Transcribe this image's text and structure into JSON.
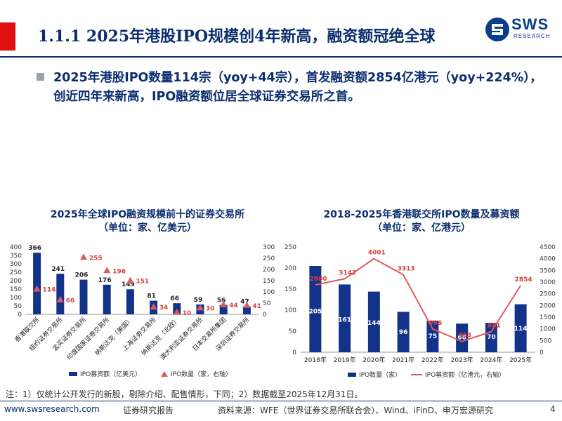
{
  "header": {
    "title": "1.1.1 2025年港股IPO规模创4年新高，融资额冠绝全球",
    "logo_text": "SWS",
    "logo_sub": "RESEARCH",
    "accent_color": "#e01010",
    "brand_color": "#0b2e6e"
  },
  "summary": {
    "text": "2025年港股IPO数量114宗（yoy+44宗），首发融资额2854亿港元（yoy+224%），创近四年来新高，IPO融资额位居全球证券交易所之首。"
  },
  "chart_data": [
    {
      "type": "bar",
      "title_line1": "2025年全球IPO融资规模前十的证券交易所",
      "title_line2": "（单位：家、亿美元）",
      "categories": [
        "香港联交所",
        "纽约证券交易所",
        "孟买证券交易所",
        "印度国家证券交易所",
        "纳斯达克（美国）",
        "上海证券交易所",
        "纳斯达克（北欧）",
        "澳大利亚证券交易所",
        "日本交易所集团",
        "深圳证券交易所"
      ],
      "series": [
        {
          "name": "IPO募资额（亿美元）",
          "values": [
            366,
            241,
            206,
            176,
            149,
            81,
            66,
            59,
            56,
            47
          ],
          "color": "#13338a",
          "axis": "left"
        },
        {
          "name": "IPO数量（家，右轴）",
          "values": [
            114,
            66,
            255,
            196,
            151,
            34,
            10,
            30,
            44,
            41
          ],
          "color": "#e05a5a",
          "axis": "right",
          "marker": "triangle"
        }
      ],
      "ylim": [
        0,
        400
      ],
      "yticks": [
        0,
        50,
        100,
        150,
        200,
        250,
        300,
        350,
        400
      ],
      "y2lim": [
        0,
        300
      ],
      "y2ticks": [
        0,
        50,
        100,
        150,
        200,
        250,
        300
      ]
    },
    {
      "type": "bar",
      "title_line1": "2018-2025年香港联交所IPO数量及募资额",
      "title_line2": "（单位：家、亿港元）",
      "categories": [
        "2018年",
        "2019年",
        "2020年",
        "2021年",
        "2022年",
        "2023年",
        "2024年",
        "2025年"
      ],
      "series": [
        {
          "name": "IPO数量（家）",
          "values": [
            205,
            161,
            144,
            96,
            75,
            68,
            70,
            114
          ],
          "color": "#13338a",
          "axis": "left"
        },
        {
          "name": "IPO募资额（亿港元，右轴）",
          "values": [
            2880,
            3142,
            4001,
            3313,
            996,
            463,
            881,
            2854
          ],
          "color": "#e05a5a",
          "axis": "right",
          "marker": "line"
        }
      ],
      "ylim": [
        0,
        250
      ],
      "yticks": [
        0,
        50,
        100,
        150,
        200,
        250
      ],
      "y2lim": [
        0,
        4500
      ],
      "y2ticks": [
        0,
        500,
        1000,
        1500,
        2000,
        2500,
        3000,
        3500,
        4000,
        4500
      ]
    }
  ],
  "footer": {
    "note": "注：1）仅统计公开发行的新股，剔除介绍、配售情形，下同；2）数据截至2025年12月31日。",
    "website": "www.swsresearch.com",
    "report_type": "证券研究报告",
    "source": "资料来源：WFE（世界证券交易所联合会）、Wind、iFinD、申万宏源研究",
    "page_number": "4"
  }
}
